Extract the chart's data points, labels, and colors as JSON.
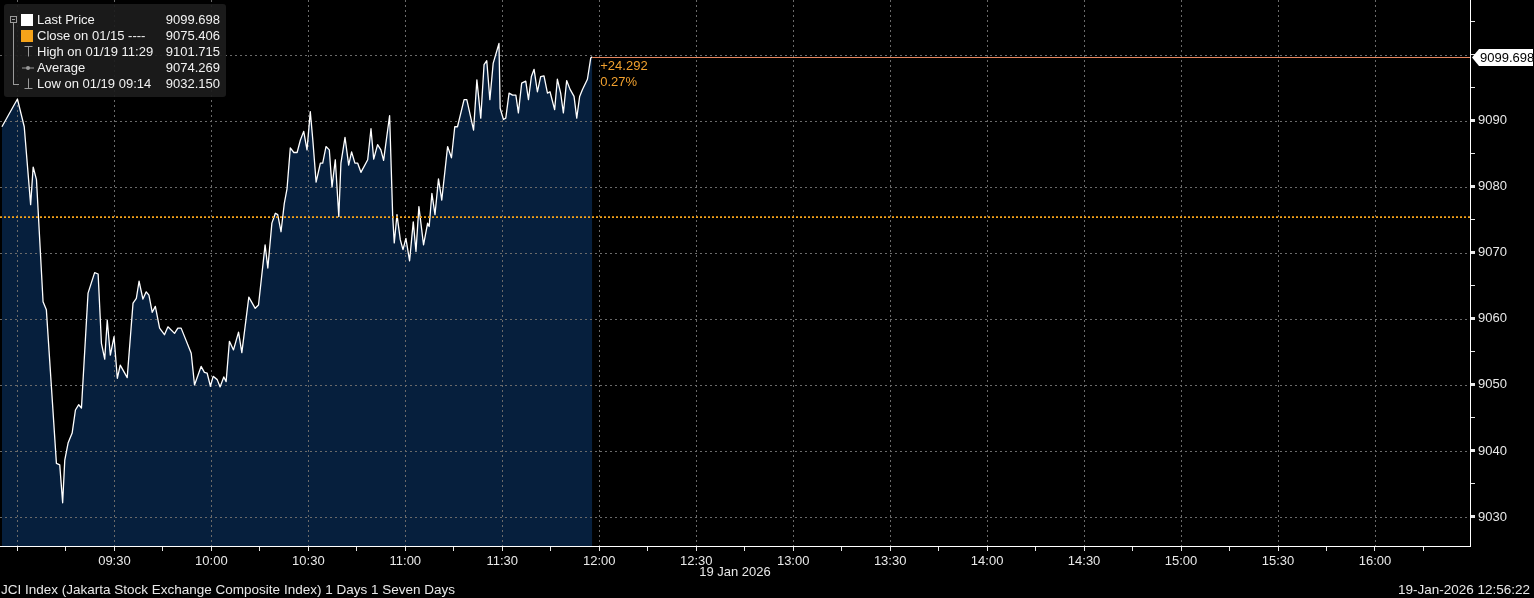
{
  "chart_data": {
    "type": "area",
    "title": "JCI Index (Jakarta Stock Exchange Composite Index) 1 Days 1 Seven Days",
    "subtitle": "19-Jan-2026 12:56:22",
    "xlabel": "19 Jan 2026",
    "x": [
      8.92,
      9.0,
      9.035,
      9.068,
      9.081,
      9.098,
      9.132,
      9.149,
      9.201,
      9.218,
      9.233,
      9.244,
      9.261,
      9.282,
      9.299,
      9.316,
      9.33,
      9.364,
      9.398,
      9.416,
      9.433,
      9.45,
      9.463,
      9.479,
      9.498,
      9.515,
      9.53,
      9.566,
      9.596,
      9.613,
      9.627,
      9.647,
      9.664,
      9.678,
      9.695,
      9.711,
      9.733,
      9.758,
      9.776,
      9.81,
      9.827,
      9.844,
      9.896,
      9.913,
      9.947,
      9.964,
      9.978,
      9.995,
      10.009,
      10.03,
      10.045,
      10.064,
      10.076,
      10.093,
      10.114,
      10.14,
      10.157,
      10.193,
      10.226,
      10.243,
      10.277,
      10.291,
      10.312,
      10.33,
      10.342,
      10.359,
      10.376,
      10.39,
      10.407,
      10.425,
      10.442,
      10.459,
      10.476,
      10.493,
      10.51,
      10.523,
      10.54,
      10.562,
      10.574,
      10.591,
      10.608,
      10.622,
      10.639,
      10.657,
      10.668,
      10.689,
      10.708,
      10.723,
      10.74,
      10.754,
      10.771,
      10.806,
      10.823,
      10.837,
      10.857,
      10.874,
      10.888,
      10.919,
      10.935,
      10.943,
      10.957,
      10.974,
      10.988,
      11.003,
      11.022,
      11.041,
      11.055,
      11.07,
      11.094,
      11.115,
      11.123,
      11.137,
      11.153,
      11.171,
      11.188,
      11.218,
      11.238,
      11.255,
      11.269,
      11.303,
      11.317,
      11.352,
      11.369,
      11.389,
      11.406,
      11.42,
      11.436,
      11.453,
      11.483,
      11.489,
      11.506,
      11.518,
      11.535,
      11.553,
      11.57,
      11.583,
      11.6,
      11.621,
      11.635,
      11.65,
      11.664,
      11.681,
      11.698,
      11.715,
      11.733,
      11.746,
      11.77,
      11.784,
      11.801,
      11.815,
      11.832,
      11.849,
      11.87,
      11.884,
      11.899,
      11.913,
      11.939,
      11.956,
      11.964
    ],
    "series": [
      {
        "name": "Last Price",
        "color": "#ffffff",
        "values": [
          9089.1,
          9093.3,
          9089.1,
          9077.3,
          9083.0,
          9081.1,
          9062.6,
          9061.4,
          9038.1,
          9037.9,
          9032.15,
          9038.6,
          9041.2,
          9042.7,
          9046.2,
          9047.0,
          9046.5,
          9063.9,
          9067.0,
          9066.8,
          9056.3,
          9053.9,
          9059.8,
          9054.5,
          9057.3,
          9051.0,
          9053.0,
          9051.1,
          9062.4,
          9063.1,
          9065.7,
          9063.0,
          9064.1,
          9063.6,
          9061.0,
          9061.9,
          9058.6,
          9057.6,
          9058.8,
          9057.8,
          9058.6,
          9058.6,
          9054.8,
          9050.0,
          9052.8,
          9051.9,
          9051.8,
          9049.8,
          9051.3,
          9050.8,
          9049.7,
          9051.2,
          9050.5,
          9056.6,
          9055.3,
          9058.0,
          9054.9,
          9063.3,
          9061.6,
          9062.1,
          9071.2,
          9067.7,
          9074.5,
          9076.0,
          9075.8,
          9073.2,
          9077.5,
          9079.7,
          9085.9,
          9085.2,
          9085.2,
          9087.1,
          9088.4,
          9085.6,
          9091.4,
          9087.1,
          9080.7,
          9083.6,
          9083.6,
          9086.1,
          9085.6,
          9080.0,
          9084.1,
          9075.5,
          9083.6,
          9087.5,
          9083.3,
          9085.3,
          9083.6,
          9083.6,
          9082.2,
          9084.1,
          9088.8,
          9084.2,
          9086.4,
          9085.6,
          9084.0,
          9090.8,
          9075.5,
          9071.5,
          9075.8,
          9072.0,
          9070.5,
          9072.2,
          9068.8,
          9074.7,
          9070.2,
          9077.0,
          9071.2,
          9074.5,
          9074.0,
          9079.0,
          9075.8,
          9081.2,
          9078.0,
          9086.1,
          9084.4,
          9089.1,
          9089.1,
          9093.2,
          9093.2,
          9088.6,
          9096.2,
          9090.4,
          9098.5,
          9099.1,
          9093.2,
          9098.7,
          9101.715,
          9091.9,
          9090.2,
          9090.4,
          9094.2,
          9093.9,
          9093.9,
          9091.2,
          9095.7,
          9096.0,
          9093.2,
          9096.7,
          9097.8,
          9094.4,
          9096.7,
          9096.8,
          9094.2,
          9094.4,
          9091.7,
          9096.3,
          9094.2,
          9091.2,
          9096.1,
          9094.8,
          9093.7,
          9090.4,
          9093.7,
          9094.7,
          9096.3,
          9099.5,
          9099.698
        ],
        "value_labels": [
          null,
          null,
          null,
          null,
          null,
          null,
          null,
          null,
          null,
          null,
          null,
          null,
          null,
          null,
          null,
          null,
          null,
          null,
          null,
          null,
          null,
          null,
          null,
          null,
          null,
          null,
          null,
          null,
          null,
          null,
          null,
          null,
          null,
          null,
          null,
          null,
          null,
          null,
          null,
          null,
          null,
          null,
          null,
          null,
          null,
          null,
          null,
          null,
          null,
          null,
          null,
          null,
          null,
          null,
          null,
          null,
          null,
          null,
          null,
          null,
          null,
          null,
          null,
          null,
          null,
          null,
          null,
          null,
          null,
          null,
          null,
          null,
          null,
          null,
          null,
          null,
          null,
          null,
          null,
          null,
          null,
          null,
          null,
          null,
          null,
          null,
          null,
          null,
          null,
          null,
          null,
          null,
          null,
          null,
          null,
          null,
          null,
          null,
          null,
          null,
          null,
          null,
          null,
          null,
          null,
          null,
          null,
          null,
          null,
          null,
          null,
          null,
          null,
          null,
          null,
          null,
          null,
          null,
          null,
          null,
          null,
          null,
          null,
          null,
          null,
          null,
          null,
          null,
          null,
          null,
          null,
          null,
          null,
          null,
          null,
          null,
          null,
          null,
          null,
          null,
          null,
          null,
          null,
          null,
          null,
          null,
          null,
          null,
          null,
          null,
          null,
          null,
          null,
          null,
          null,
          null,
          null,
          null,
          "9099.698"
        ]
      }
    ],
    "xlim": [
      8.91,
      16.49
    ],
    "xticks": [
      {
        "value": 9,
        "label": null
      },
      {
        "value": 9.25,
        "label": null
      },
      {
        "value": 9.5,
        "label": "09:30"
      },
      {
        "value": 9.75,
        "label": null
      },
      {
        "value": 10,
        "label": "10:00"
      },
      {
        "value": 10.25,
        "label": null
      },
      {
        "value": 10.5,
        "label": "10:30"
      },
      {
        "value": 10.75,
        "label": null
      },
      {
        "value": 11,
        "label": "11:00"
      },
      {
        "value": 11.25,
        "label": null
      },
      {
        "value": 11.5,
        "label": "11:30"
      },
      {
        "value": 11.75,
        "label": null
      },
      {
        "value": 12,
        "label": "12:00"
      },
      {
        "value": 12.25,
        "label": null
      },
      {
        "value": 12.5,
        "label": "12:30"
      },
      {
        "value": 12.75,
        "label": null
      },
      {
        "value": 13,
        "label": "13:00"
      },
      {
        "value": 13.25,
        "label": null
      },
      {
        "value": 13.5,
        "label": "13:30"
      },
      {
        "value": 13.75,
        "label": null
      },
      {
        "value": 14,
        "label": "14:00"
      },
      {
        "value": 14.25,
        "label": null
      },
      {
        "value": 14.5,
        "label": "14:30"
      },
      {
        "value": 14.75,
        "label": null
      },
      {
        "value": 15,
        "label": "15:00"
      },
      {
        "value": 15.25,
        "label": null
      },
      {
        "value": 15.5,
        "label": "15:30"
      },
      {
        "value": 15.75,
        "label": null
      },
      {
        "value": 16,
        "label": "16:00"
      },
      {
        "value": 16.25,
        "label": null
      }
    ],
    "ylim": [
      9025.6,
      9108.3
    ],
    "yticks": [
      9030,
      {
        "value": 9035,
        "label": null
      },
      9040,
      {
        "value": 9045,
        "label": null
      },
      9050,
      {
        "value": 9055,
        "label": null
      },
      9060,
      {
        "value": 9065,
        "label": null
      },
      9070,
      {
        "value": 9075,
        "label": null
      },
      9080,
      {
        "value": 9085,
        "label": null
      },
      9090,
      {
        "value": 9095,
        "label": null
      },
      {
        "value": 9100,
        "label": null
      },
      {
        "value": 9105,
        "label": null
      }
    ],
    "ref_lines": [
      {
        "axis": "y",
        "value": 9075.406,
        "label": "Close on 01/15 ----",
        "color": "#f5a31a",
        "line_style": "dotted"
      }
    ],
    "annotations": [
      "9099.698",
      "9075.406",
      "High on 01/19 11:29 9101.715",
      "Average 9074.269",
      "Low on 01/19 09:14 9032.150",
      {
        "text": "+24.292",
        "x": 11.964,
        "y": 9099.698
      },
      {
        "text": "0.27%",
        "x": 11.964,
        "y": 9099.698
      }
    ],
    "grid": true,
    "legend": "top left"
  }
}
